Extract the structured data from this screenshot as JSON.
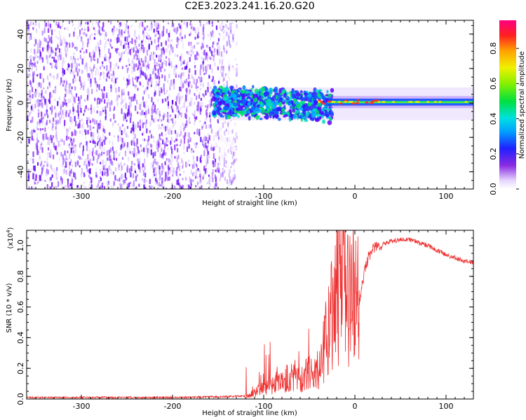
{
  "title": "C2E3.2023.241.16.20.G20",
  "chart_data": [
    {
      "type": "heatmap",
      "xlabel": "Height of straight line (km)",
      "ylabel": "Frequency (Hz)",
      "xlim": [
        -360,
        130
      ],
      "ylim": [
        -50,
        48
      ],
      "xticks": [
        -300,
        -200,
        -100,
        0,
        100
      ],
      "yticks": [
        -40,
        -20,
        0,
        20,
        40
      ],
      "colorbar": {
        "label": "Normalized spectral amplitude",
        "range": [
          0,
          0.96
        ],
        "ticks": [
          0.0,
          0.2,
          0.4,
          0.6,
          0.8
        ],
        "tick_labels": [
          "0.0",
          "0.2",
          "0.4",
          "0.6",
          "0.8"
        ]
      },
      "grid": false
    },
    {
      "type": "line",
      "xlabel": "Height of straight line (km)",
      "ylabel": "SNR (10 * v/v)",
      "yscale_label": "(x10",
      "yscale_exp": "4",
      "yscale_close": ")",
      "xlim": [
        -360,
        130
      ],
      "ylim": [
        0,
        1.1
      ],
      "xticks": [
        -300,
        -200,
        -100,
        0,
        100
      ],
      "yticks": [
        0.0,
        0.2,
        0.4,
        0.6,
        0.8,
        1.0
      ],
      "ytick_labels": [
        "0.0",
        "0.2",
        "0.4",
        "0.6",
        "0.8",
        "1.0"
      ],
      "series": [
        {
          "color": "#ee3030",
          "x": [
            -360,
            -300,
            -200,
            -140,
            -120,
            -110,
            -105,
            -100,
            -90,
            -80,
            -70,
            -60,
            -50,
            -45,
            -40,
            -35,
            -30,
            -25,
            -20,
            -15,
            -10,
            -5,
            0,
            5,
            10,
            15,
            20,
            30,
            40,
            50,
            60,
            70,
            80,
            90,
            100,
            110,
            120,
            130
          ],
          "y": [
            0.01,
            0.01,
            0.01,
            0.015,
            0.02,
            0.04,
            0.06,
            0.08,
            0.1,
            0.12,
            0.15,
            0.13,
            0.17,
            0.14,
            0.2,
            0.3,
            0.45,
            0.6,
            0.7,
            0.75,
            0.7,
            0.65,
            0.6,
            0.65,
            0.82,
            0.93,
            0.98,
            1.01,
            1.03,
            1.04,
            1.04,
            1.02,
            1.0,
            0.97,
            0.94,
            0.92,
            0.9,
            0.89
          ]
        }
      ]
    }
  ]
}
